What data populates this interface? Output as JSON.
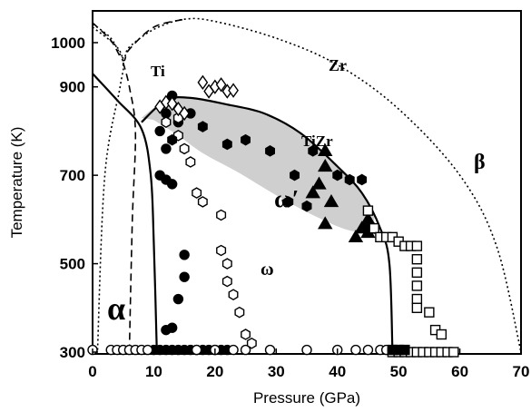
{
  "chart_data": {
    "type": "scatter",
    "xlabel": "Pressure (GPa)",
    "ylabel": "Temperature (K)",
    "xlim": [
      0,
      70
    ],
    "ylim": [
      285,
      1070
    ],
    "x_ticks": [
      "0",
      "10",
      "20",
      "30",
      "40",
      "50",
      "60",
      "70"
    ],
    "y_ticks": [
      "300",
      "500",
      "700",
      "900",
      "1000"
    ],
    "grid": false,
    "phase_labels": {
      "alpha": "α",
      "omega": "ω",
      "omega_prime": "ω′",
      "beta": "β",
      "ti": "Ti",
      "zr": "Zr",
      "tizr": "TiZr"
    },
    "boundaries": [
      {
        "name": "Zr phase boundary (dotted)",
        "style": "dotted",
        "points": [
          [
            0,
            1042
          ],
          [
            3,
            1010
          ],
          [
            5,
            965
          ],
          [
            6,
            990
          ],
          [
            10,
            1030
          ],
          [
            15,
            1053
          ],
          [
            20,
            1048
          ],
          [
            30,
            1010
          ],
          [
            40,
            950
          ],
          [
            50,
            850
          ],
          [
            60,
            700
          ],
          [
            66,
            540
          ],
          [
            70,
            300
          ]
        ]
      },
      {
        "name": "Zr alpha-omega (dotted)",
        "style": "dotted",
        "points": [
          [
            0,
            1035
          ],
          [
            4,
            990
          ],
          [
            5,
            950
          ],
          [
            4.5,
            900
          ],
          [
            2,
            700
          ],
          [
            0.8,
            300
          ]
        ]
      },
      {
        "name": "Ti boundary (dashed)",
        "style": "dashed",
        "points": [
          [
            0,
            1045
          ],
          [
            3,
            1005
          ],
          [
            5,
            960
          ],
          [
            6,
            985
          ],
          [
            10,
            1035
          ],
          [
            15,
            1053
          ]
        ]
      },
      {
        "name": "Ti alpha-omega (dashed)",
        "style": "dashed",
        "points": [
          [
            5,
            955
          ],
          [
            6,
            900
          ],
          [
            7,
            800
          ],
          [
            6.5,
            600
          ],
          [
            6,
            300
          ]
        ]
      },
      {
        "name": "TiZr alpha boundary (solid)",
        "style": "solid",
        "points": [
          [
            0,
            930
          ],
          [
            4,
            870
          ],
          [
            8,
            805
          ],
          [
            9.5,
            700
          ],
          [
            10,
            550
          ],
          [
            10.5,
            300
          ]
        ]
      },
      {
        "name": "TiZr omega-beta boundary (solid)",
        "style": "solid",
        "points": [
          [
            8,
            820
          ],
          [
            12,
            870
          ],
          [
            16,
            875
          ],
          [
            22,
            860
          ],
          [
            28,
            840
          ],
          [
            34,
            795
          ],
          [
            40,
            720
          ],
          [
            44,
            660
          ],
          [
            47,
            580
          ],
          [
            48.5,
            500
          ],
          [
            49,
            300
          ]
        ]
      }
    ],
    "omega_prime_region": [
      [
        8,
        830
      ],
      [
        12,
        870
      ],
      [
        16,
        876
      ],
      [
        22,
        862
      ],
      [
        28,
        840
      ],
      [
        34,
        796
      ],
      [
        40,
        720
      ],
      [
        44,
        660
      ],
      [
        46,
        610
      ],
      [
        45,
        580
      ],
      [
        42,
        575
      ],
      [
        36,
        610
      ],
      [
        30,
        655
      ],
      [
        24,
        705
      ],
      [
        18,
        750
      ],
      [
        14,
        790
      ],
      [
        10,
        825
      ]
    ],
    "series": [
      {
        "marker": "filled-circle",
        "points": [
          [
            10,
            305
          ],
          [
            11,
            305
          ],
          [
            12,
            305
          ],
          [
            13,
            305
          ],
          [
            14,
            305
          ],
          [
            15,
            305
          ],
          [
            16,
            305
          ],
          [
            17,
            305
          ],
          [
            18,
            305
          ],
          [
            19,
            305
          ],
          [
            20,
            305
          ],
          [
            21,
            305
          ],
          [
            22,
            305
          ],
          [
            12,
            350
          ],
          [
            13,
            355
          ],
          [
            14,
            420
          ],
          [
            15,
            520
          ],
          [
            15,
            470
          ],
          [
            11,
            700
          ],
          [
            12,
            690
          ],
          [
            12,
            760
          ],
          [
            13,
            680
          ],
          [
            14,
            820
          ],
          [
            11,
            800
          ],
          [
            12,
            840
          ],
          [
            13,
            880
          ],
          [
            16,
            840
          ]
        ]
      },
      {
        "marker": "open-circle",
        "points": [
          [
            0,
            305
          ],
          [
            3,
            305
          ],
          [
            4,
            305
          ],
          [
            5,
            305
          ],
          [
            6,
            305
          ],
          [
            7,
            305
          ],
          [
            8,
            305
          ],
          [
            9,
            305
          ],
          [
            17,
            305
          ],
          [
            20,
            305
          ],
          [
            23,
            305
          ],
          [
            25,
            305
          ],
          [
            29,
            305
          ],
          [
            35,
            305
          ],
          [
            40,
            305
          ],
          [
            43,
            305
          ],
          [
            45,
            305
          ],
          [
            47,
            305
          ],
          [
            48,
            305
          ],
          [
            49,
            305
          ]
        ]
      },
      {
        "marker": "open-hexagon",
        "points": [
          [
            14,
            790
          ],
          [
            15,
            760
          ],
          [
            16,
            730
          ],
          [
            17,
            660
          ],
          [
            18,
            640
          ],
          [
            21,
            610
          ],
          [
            21,
            530
          ],
          [
            22,
            500
          ],
          [
            22,
            460
          ],
          [
            23,
            430
          ],
          [
            24,
            390
          ],
          [
            25,
            340
          ],
          [
            26,
            320
          ],
          [
            12,
            820
          ],
          [
            14,
            830
          ]
        ]
      },
      {
        "marker": "filled-hexagon",
        "points": [
          [
            13,
            780
          ],
          [
            18,
            810
          ],
          [
            22,
            770
          ],
          [
            25,
            780
          ],
          [
            29,
            755
          ],
          [
            32,
            640
          ],
          [
            33,
            700
          ],
          [
            35,
            630
          ],
          [
            36,
            755
          ],
          [
            40,
            700
          ],
          [
            42,
            690
          ],
          [
            44,
            690
          ],
          [
            45,
            590
          ],
          [
            46,
            580
          ]
        ]
      },
      {
        "marker": "open-diamond",
        "points": [
          [
            11,
            855
          ],
          [
            12,
            865
          ],
          [
            13,
            862
          ],
          [
            18,
            910
          ],
          [
            19,
            890
          ],
          [
            20,
            900
          ],
          [
            21,
            905
          ],
          [
            22,
            890
          ],
          [
            23,
            892
          ],
          [
            14,
            850
          ],
          [
            15,
            840
          ]
        ]
      },
      {
        "marker": "filled-triangle",
        "points": [
          [
            36,
            660
          ],
          [
            37,
            680
          ],
          [
            38,
            755
          ],
          [
            38,
            720
          ],
          [
            38,
            590
          ],
          [
            39,
            640
          ],
          [
            43,
            560
          ],
          [
            44,
            580
          ],
          [
            45,
            570
          ],
          [
            45,
            600
          ]
        ]
      },
      {
        "marker": "open-square",
        "points": [
          [
            49,
            300
          ],
          [
            50,
            300
          ],
          [
            51,
            300
          ],
          [
            52,
            300
          ],
          [
            53,
            300
          ],
          [
            54,
            300
          ],
          [
            55,
            300
          ],
          [
            56,
            300
          ],
          [
            57,
            300
          ],
          [
            58,
            300
          ],
          [
            59,
            300
          ],
          [
            45,
            620
          ],
          [
            46,
            580
          ],
          [
            47,
            560
          ],
          [
            48,
            560
          ],
          [
            49,
            560
          ],
          [
            50,
            550
          ],
          [
            51,
            540
          ],
          [
            52,
            540
          ],
          [
            53,
            540
          ],
          [
            53,
            510
          ],
          [
            53,
            480
          ],
          [
            53,
            450
          ],
          [
            53,
            420
          ],
          [
            53,
            400
          ],
          [
            55,
            390
          ],
          [
            56,
            350
          ],
          [
            57,
            340
          ]
        ]
      },
      {
        "marker": "filled-square",
        "points": [
          [
            49,
            305
          ],
          [
            50,
            305
          ],
          [
            51,
            305
          ]
        ]
      }
    ]
  }
}
